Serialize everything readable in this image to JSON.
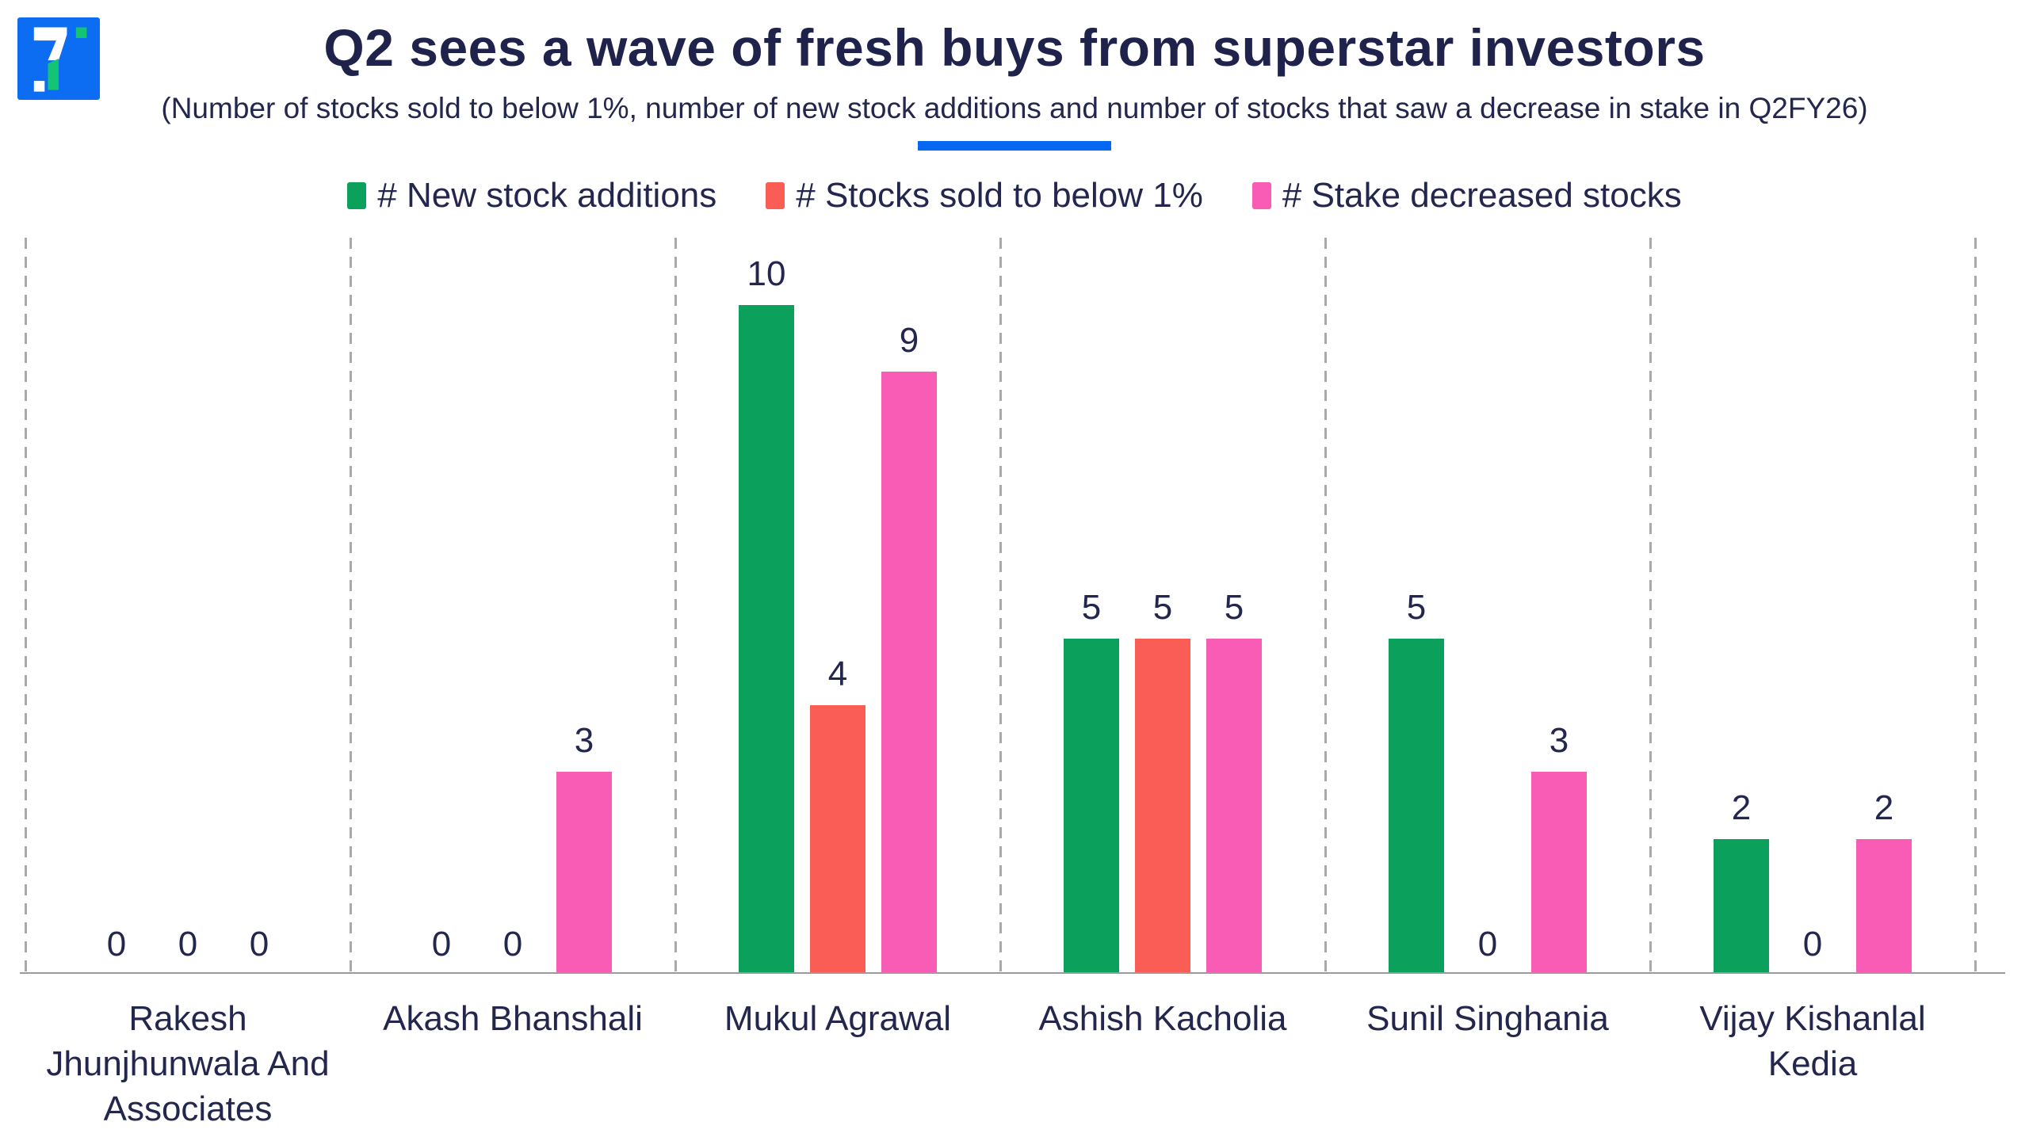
{
  "header": {
    "logo_name": "trendlyne-logo",
    "title": "Q2 sees a wave of fresh buys from superstar investors",
    "subtitle": "(Number of stocks sold to below 1%, number of new stock additions and number of stocks that saw a decrease in stake in Q2FY26)"
  },
  "colors": {
    "title_navy": "#1F234B",
    "text_navy": "#23274E",
    "accent_underline_blue": "#0767F3",
    "gridline_gray": "#A9A9A9",
    "baseline_gray": "#9B9B9B",
    "logo_blue": "#0D6DF2",
    "logo_green": "#12C473"
  },
  "chart_data": {
    "type": "bar",
    "title": "Q2 sees a wave of fresh buys from superstar investors",
    "subtitle": "(Number of stocks sold to below 1%, number of new stock additions and number of stocks that saw a decrease in stake in Q2FY26)",
    "categories": [
      "Rakesh Jhunjhunwala And Associates",
      "Akash Bhanshali",
      "Mukul Agrawal",
      "Ashish Kacholia",
      "Sunil Singhania",
      "Vijay Kishanlal Kedia"
    ],
    "series": [
      {
        "name": "# New stock additions",
        "color": "#0BA05C",
        "values": [
          0,
          0,
          10,
          5,
          5,
          2
        ]
      },
      {
        "name": "# Stocks sold to below 1%",
        "color": "#F95D55",
        "values": [
          0,
          0,
          4,
          5,
          0,
          0
        ]
      },
      {
        "name": "# Stake decreased stocks",
        "color": "#F85CB5",
        "values": [
          0,
          3,
          9,
          5,
          3,
          2
        ]
      }
    ],
    "ylim": [
      0,
      10
    ],
    "data_labels": true,
    "legend_position": "top",
    "gridlines": "vertical-dashed"
  }
}
